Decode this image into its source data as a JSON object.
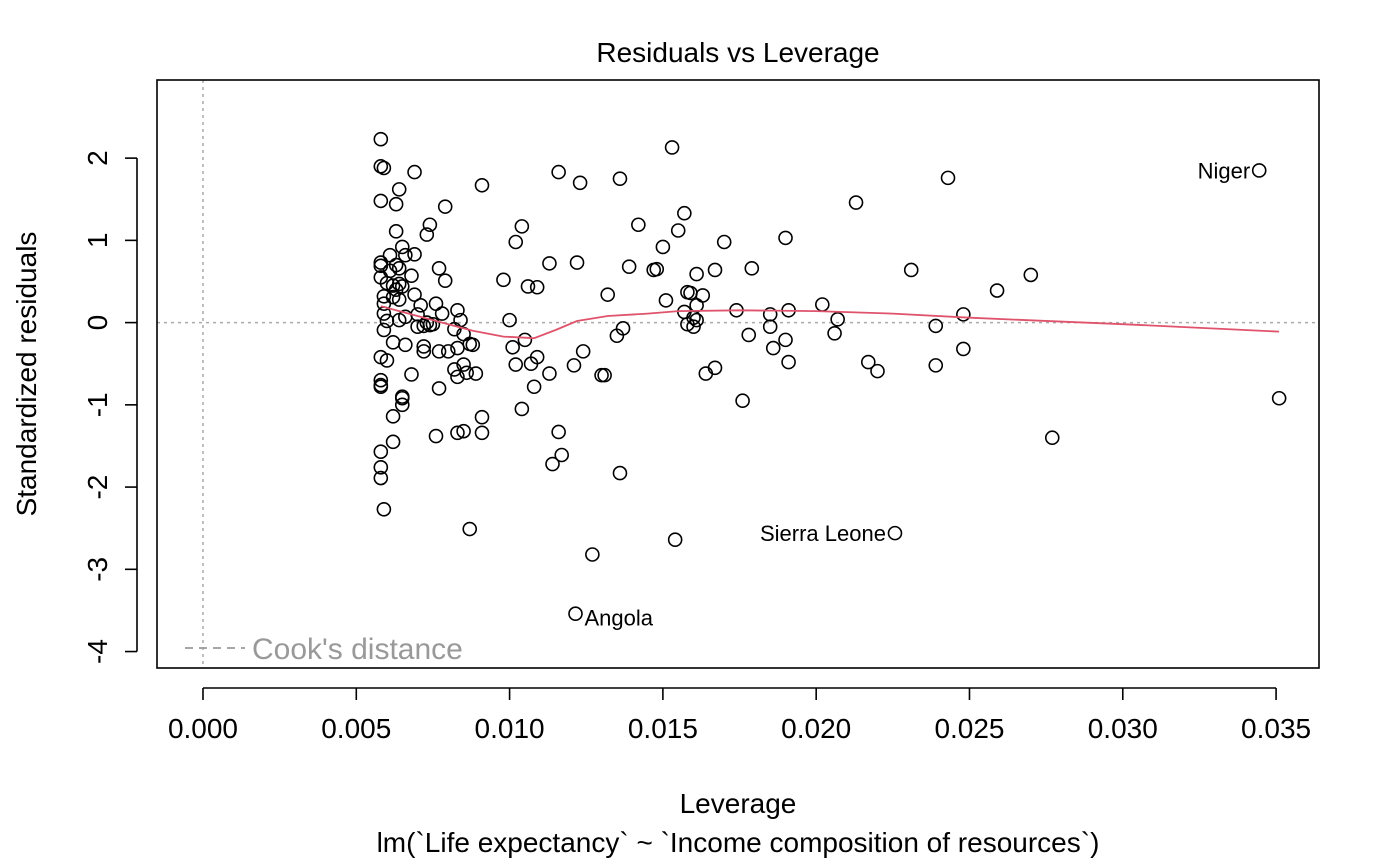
{
  "chart_data": {
    "type": "scatter",
    "title": "Residuals vs Leverage",
    "xlabel": "Leverage",
    "ylabel": "Standardized residuals",
    "subtitle": "lm(`Life expectancy` ~ `Income composition of resources`)",
    "xlim": [
      -0.0015,
      0.0364
    ],
    "ylim": [
      -4.2,
      2.95
    ],
    "x_ticks": [
      "0.000",
      "0.005",
      "0.010",
      "0.015",
      "0.020",
      "0.025",
      "0.030",
      "0.035"
    ],
    "x_tick_values": [
      0,
      0.005,
      0.01,
      0.015,
      0.02,
      0.025,
      0.03,
      0.035
    ],
    "y_ticks": [
      "-4",
      "-3",
      "-2",
      "-1",
      "0",
      "1",
      "2"
    ],
    "y_tick_values": [
      -4,
      -3,
      -2,
      -1,
      0,
      1,
      2
    ],
    "legend": {
      "label": "Cook's distance",
      "position": "bottom-left",
      "color": "#999999"
    },
    "reference_lines": {
      "h": 0,
      "v": 0,
      "color": "#aaaaaa"
    },
    "smooth_color": "#DF536B",
    "point_color": "#000000",
    "smooth": [
      [
        0.0058,
        0.2
      ],
      [
        0.0068,
        0.1
      ],
      [
        0.0078,
        0.0
      ],
      [
        0.0088,
        -0.1
      ],
      [
        0.0098,
        -0.17
      ],
      [
        0.0108,
        -0.19
      ],
      [
        0.0115,
        -0.09
      ],
      [
        0.0122,
        0.02
      ],
      [
        0.0132,
        0.08
      ],
      [
        0.0145,
        0.11
      ],
      [
        0.0155,
        0.14
      ],
      [
        0.0175,
        0.15
      ],
      [
        0.02,
        0.14
      ],
      [
        0.0225,
        0.11
      ],
      [
        0.025,
        0.06
      ],
      [
        0.03,
        -0.02
      ],
      [
        0.0351,
        -0.11
      ]
    ],
    "labeled_points": [
      {
        "label": "Niger",
        "x": 0.03445,
        "y": 1.85
      },
      {
        "label": "Sierra Leone",
        "x": 0.02257,
        "y": -2.56
      },
      {
        "label": "Angola",
        "x": 0.01215,
        "y": -3.54
      }
    ],
    "points": [
      [
        0.0058,
        2.23
      ],
      [
        0.0058,
        1.9
      ],
      [
        0.0059,
        1.88
      ],
      [
        0.0058,
        1.48
      ],
      [
        0.0064,
        1.62
      ],
      [
        0.0063,
        1.44
      ],
      [
        0.0069,
        1.83
      ],
      [
        0.0063,
        1.11
      ],
      [
        0.0065,
        0.92
      ],
      [
        0.0073,
        1.07
      ],
      [
        0.0074,
        1.19
      ],
      [
        0.0079,
        1.41
      ],
      [
        0.0091,
        1.67
      ],
      [
        0.0061,
        0.82
      ],
      [
        0.0066,
        0.82
      ],
      [
        0.0069,
        0.83
      ],
      [
        0.0058,
        0.73
      ],
      [
        0.0058,
        0.69
      ],
      [
        0.0063,
        0.7
      ],
      [
        0.0058,
        0.55
      ],
      [
        0.0061,
        0.63
      ],
      [
        0.0064,
        0.66
      ],
      [
        0.0068,
        0.57
      ],
      [
        0.0077,
        0.66
      ],
      [
        0.0079,
        0.51
      ],
      [
        0.006,
        0.48
      ],
      [
        0.0062,
        0.45
      ],
      [
        0.0063,
        0.4
      ],
      [
        0.0065,
        0.44
      ],
      [
        0.0064,
        0.47
      ],
      [
        0.0059,
        0.32
      ],
      [
        0.0062,
        0.31
      ],
      [
        0.0064,
        0.28
      ],
      [
        0.0069,
        0.34
      ],
      [
        0.0071,
        0.21
      ],
      [
        0.0076,
        0.23
      ],
      [
        0.0083,
        0.15
      ],
      [
        0.0059,
        0.23
      ],
      [
        0.0059,
        0.11
      ],
      [
        0.006,
        0.02
      ],
      [
        0.0064,
        0.03
      ],
      [
        0.0066,
        0.07
      ],
      [
        0.007,
        0.1
      ],
      [
        0.0073,
        0.0
      ],
      [
        0.0075,
        -0.02
      ],
      [
        0.0078,
        0.11
      ],
      [
        0.0084,
        0.03
      ],
      [
        0.0059,
        -0.09
      ],
      [
        0.007,
        -0.05
      ],
      [
        0.0072,
        -0.04
      ],
      [
        0.0074,
        -0.03
      ],
      [
        0.0082,
        -0.08
      ],
      [
        0.0085,
        -0.14
      ],
      [
        0.0062,
        -0.24
      ],
      [
        0.0066,
        -0.27
      ],
      [
        0.0072,
        -0.29
      ],
      [
        0.0072,
        -0.35
      ],
      [
        0.0077,
        -0.35
      ],
      [
        0.008,
        -0.35
      ],
      [
        0.0083,
        -0.31
      ],
      [
        0.0087,
        -0.26
      ],
      [
        0.0088,
        -0.27
      ],
      [
        0.0058,
        -0.42
      ],
      [
        0.006,
        -0.46
      ],
      [
        0.0068,
        -0.63
      ],
      [
        0.0082,
        -0.57
      ],
      [
        0.0083,
        -0.66
      ],
      [
        0.0085,
        -0.51
      ],
      [
        0.0086,
        -0.61
      ],
      [
        0.0089,
        -0.62
      ],
      [
        0.0058,
        -0.7
      ],
      [
        0.0058,
        -0.76
      ],
      [
        0.0058,
        -0.78
      ],
      [
        0.0077,
        -0.8
      ],
      [
        0.0065,
        -0.9
      ],
      [
        0.0065,
        -0.92
      ],
      [
        0.0065,
        -1.0
      ],
      [
        0.0062,
        -1.14
      ],
      [
        0.0091,
        -1.15
      ],
      [
        0.0058,
        -1.57
      ],
      [
        0.0062,
        -1.45
      ],
      [
        0.0076,
        -1.38
      ],
      [
        0.0083,
        -1.34
      ],
      [
        0.0085,
        -1.32
      ],
      [
        0.0091,
        -1.34
      ],
      [
        0.0058,
        -1.76
      ],
      [
        0.0058,
        -1.89
      ],
      [
        0.0059,
        -2.27
      ],
      [
        0.0087,
        -2.51
      ],
      [
        0.0098,
        0.52
      ],
      [
        0.01,
        0.03
      ],
      [
        0.0102,
        0.98
      ],
      [
        0.0104,
        1.17
      ],
      [
        0.0106,
        0.44
      ],
      [
        0.0109,
        0.43
      ],
      [
        0.0101,
        -0.3
      ],
      [
        0.0105,
        -0.21
      ],
      [
        0.0107,
        -0.5
      ],
      [
        0.0109,
        -0.42
      ],
      [
        0.0102,
        -0.51
      ],
      [
        0.0108,
        -0.78
      ],
      [
        0.0104,
        -1.05
      ],
      [
        0.0113,
        0.72
      ],
      [
        0.0116,
        1.83
      ],
      [
        0.0123,
        1.7
      ],
      [
        0.0122,
        0.73
      ],
      [
        0.0113,
        -0.62
      ],
      [
        0.0121,
        -0.52
      ],
      [
        0.0124,
        -0.35
      ],
      [
        0.0116,
        -1.33
      ],
      [
        0.0117,
        -1.61
      ],
      [
        0.0114,
        -1.72
      ],
      [
        0.0127,
        -2.82
      ],
      [
        0.0136,
        1.75
      ],
      [
        0.0132,
        0.34
      ],
      [
        0.0139,
        0.68
      ],
      [
        0.0135,
        -0.16
      ],
      [
        0.0137,
        -0.07
      ],
      [
        0.0131,
        -0.64
      ],
      [
        0.013,
        -0.64
      ],
      [
        0.0136,
        -1.83
      ],
      [
        0.0142,
        1.19
      ],
      [
        0.0153,
        2.13
      ],
      [
        0.015,
        0.92
      ],
      [
        0.0147,
        0.64
      ],
      [
        0.0148,
        0.65
      ],
      [
        0.0151,
        0.27
      ],
      [
        0.0155,
        1.12
      ],
      [
        0.0157,
        1.33
      ],
      [
        0.0158,
        0.37
      ],
      [
        0.0159,
        0.36
      ],
      [
        0.0157,
        0.13
      ],
      [
        0.0158,
        -0.02
      ],
      [
        0.016,
        -0.05
      ],
      [
        0.0161,
        0.03
      ],
      [
        0.0161,
        0.59
      ],
      [
        0.016,
        0.06
      ],
      [
        0.0161,
        0.21
      ],
      [
        0.0163,
        0.33
      ],
      [
        0.0154,
        -2.64
      ],
      [
        0.0164,
        -0.62
      ],
      [
        0.0167,
        -0.55
      ],
      [
        0.0167,
        0.64
      ],
      [
        0.017,
        0.98
      ],
      [
        0.0174,
        0.15
      ],
      [
        0.0176,
        -0.95
      ],
      [
        0.0178,
        -0.15
      ],
      [
        0.0179,
        0.66
      ],
      [
        0.0185,
        0.1
      ],
      [
        0.0185,
        -0.05
      ],
      [
        0.0186,
        -0.31
      ],
      [
        0.019,
        1.03
      ],
      [
        0.019,
        -0.21
      ],
      [
        0.0191,
        0.15
      ],
      [
        0.0191,
        -0.48
      ],
      [
        0.0202,
        0.22
      ],
      [
        0.0206,
        -0.13
      ],
      [
        0.0207,
        0.04
      ],
      [
        0.0213,
        1.46
      ],
      [
        0.0217,
        -0.48
      ],
      [
        0.022,
        -0.59
      ],
      [
        0.0231,
        0.64
      ],
      [
        0.0239,
        -0.04
      ],
      [
        0.0239,
        -0.52
      ],
      [
        0.0243,
        1.76
      ],
      [
        0.0248,
        0.1
      ],
      [
        0.0248,
        -0.32
      ],
      [
        0.0259,
        0.39
      ],
      [
        0.027,
        0.58
      ],
      [
        0.0277,
        -1.4
      ],
      [
        0.0351,
        -0.92
      ],
      [
        0.03445,
        1.85
      ],
      [
        0.02257,
        -2.56
      ],
      [
        0.01215,
        -3.54
      ]
    ]
  }
}
